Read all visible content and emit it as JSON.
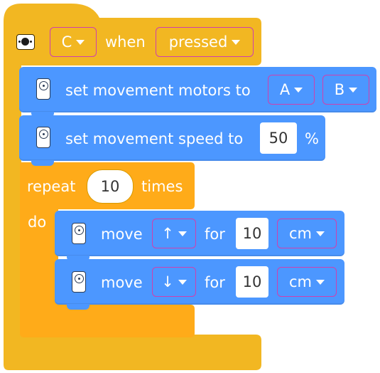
{
  "hat": {
    "port": "C",
    "when_label": "when",
    "state": "pressed"
  },
  "set_motors": {
    "label": "set movement motors to",
    "motor_a": "A",
    "motor_b": "B"
  },
  "set_speed": {
    "label": "set movement speed to",
    "value": "50",
    "unit": "%"
  },
  "repeat": {
    "label": "repeat",
    "count": "10",
    "times_label": "times",
    "do_label": "do"
  },
  "move_1": {
    "label": "move",
    "direction": "↑",
    "for_label": "for",
    "amount": "10",
    "unit": "cm"
  },
  "move_2": {
    "label": "move",
    "direction": "↓",
    "for_label": "for",
    "amount": "10",
    "unit": "cm"
  },
  "colors": {
    "event": "#f2b722",
    "control": "#ffab19",
    "motion": "#4c97ff",
    "outline": "#cf3fae"
  }
}
